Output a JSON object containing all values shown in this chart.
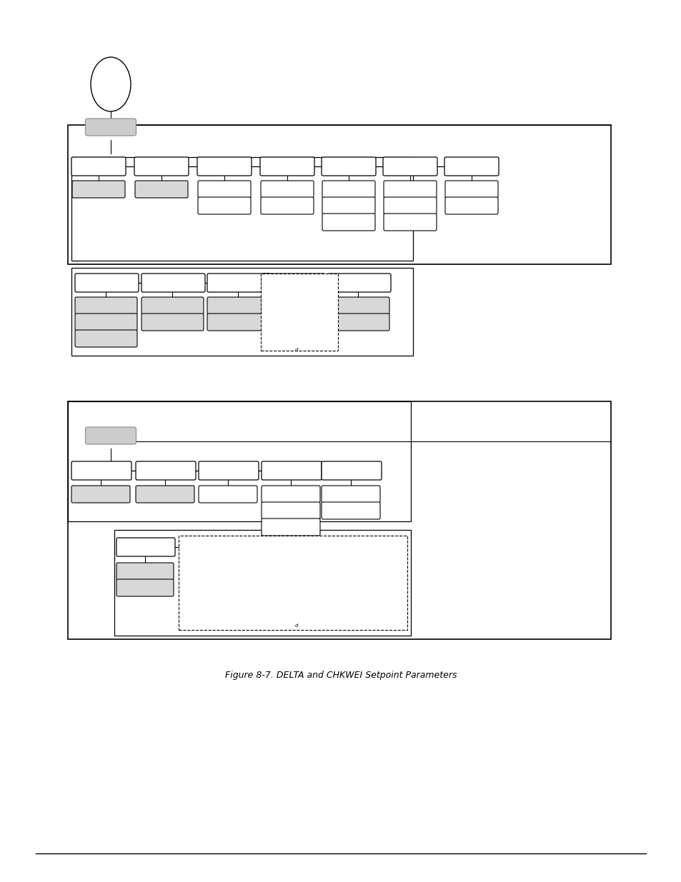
{
  "bg_color": "#ffffff",
  "title": "Figure 8-7. DELTA and CHKWEI Setpoint Parameters",
  "title_fontsize": 9,
  "title_style": "italic"
}
